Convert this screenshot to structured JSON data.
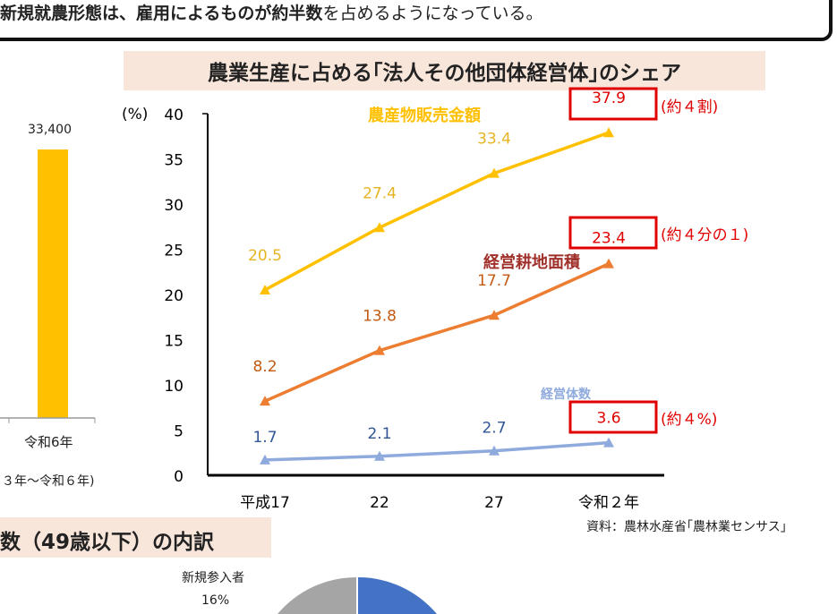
{
  "banner": {
    "bold": "新規就農形態は、雇用によるものが約半数",
    "rest": "を占めるようになっている。"
  },
  "left_chart": {
    "value_label": "33,400",
    "x_label": "令和6年",
    "period": "３年～令和６年)",
    "bar_color": "#ffc000"
  },
  "chart_data": {
    "type": "line",
    "title": "農業生産に占める｢法人その他団体経営体｣のシェア",
    "ylabel": "(%)",
    "ylim": [
      0,
      40
    ],
    "yticks": [
      0,
      5,
      10,
      15,
      20,
      25,
      30,
      35,
      40
    ],
    "categories": [
      "平成17",
      "22",
      "27",
      "令和２年"
    ],
    "grid": false,
    "series": [
      {
        "name": "農産物販売金額",
        "values": [
          20.5,
          27.4,
          33.4,
          37.9
        ],
        "labels": [
          "20.5",
          "27.4",
          "33.4",
          "37.9"
        ],
        "color": "#ffc000",
        "label_color": "#e6b422",
        "annotation": "(約４割)"
      },
      {
        "name": "経営耕地面積",
        "values": [
          8.2,
          13.8,
          17.7,
          23.4
        ],
        "labels": [
          "8.2",
          "13.8",
          "17.7",
          "23.4"
        ],
        "color": "#ed7d31",
        "label_color": "#c55a11",
        "annotation": "(約４分の１)"
      },
      {
        "name": "経営体数",
        "values": [
          1.7,
          2.1,
          2.7,
          3.6
        ],
        "labels": [
          "1.7",
          "2.1",
          "2.7",
          "3.6"
        ],
        "color": "#8faadc",
        "label_color": "#2f5597",
        "annotation": "(約４%)"
      }
    ],
    "highlight_color": "#e00000",
    "source": "資料：農林水産省｢農林業センサス｣"
  },
  "bottom": {
    "title": "数（49歳以下）の内訳",
    "pie_label": "新規参入者",
    "pie_pct": "16%",
    "colors": {
      "gray": "#a5a5a5",
      "blue": "#4472c4"
    }
  }
}
